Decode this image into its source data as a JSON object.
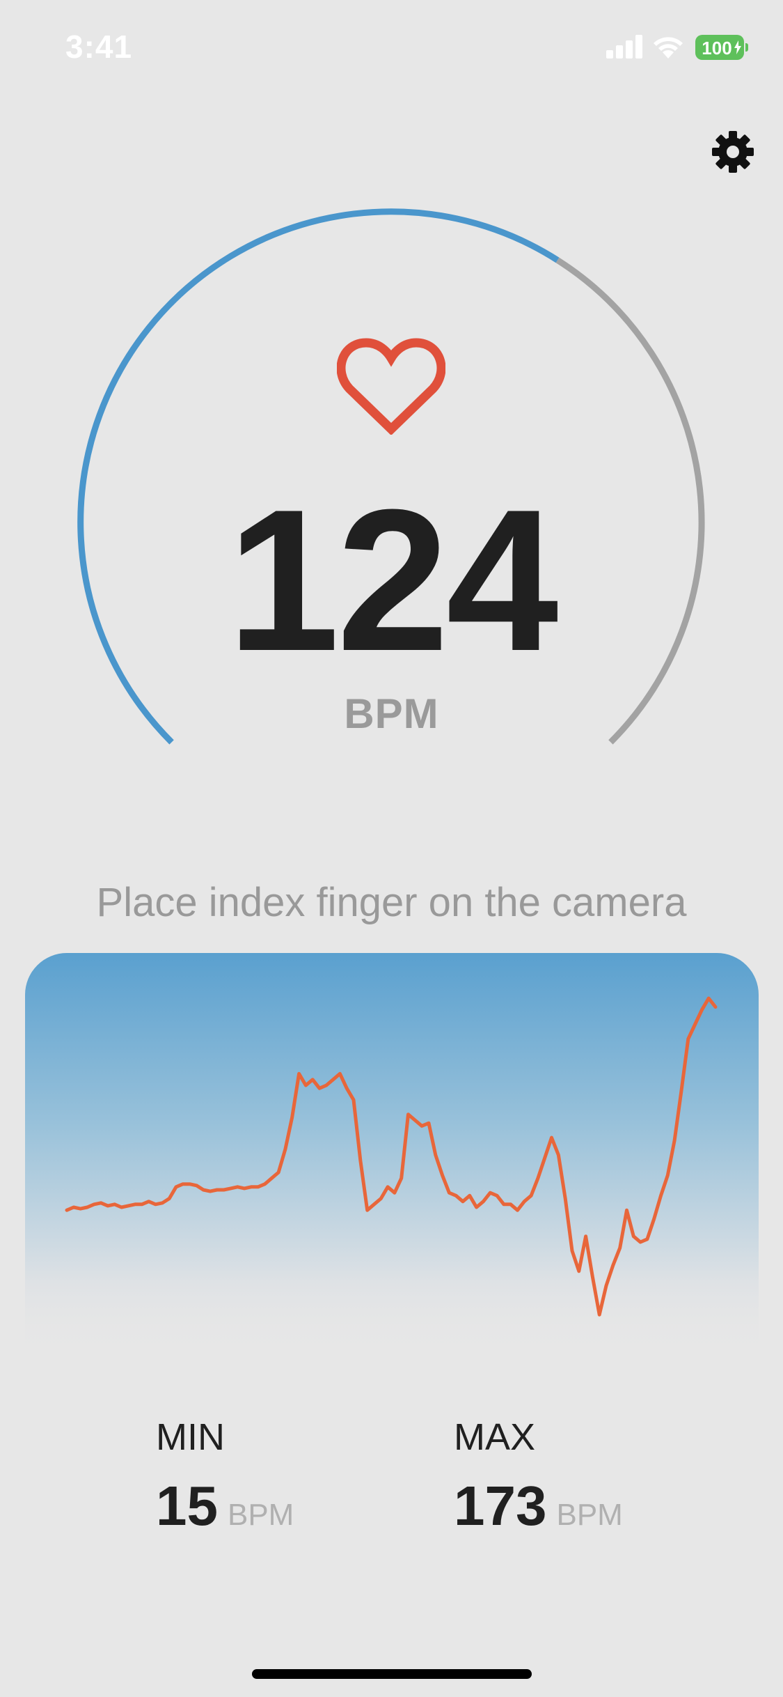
{
  "status_bar": {
    "time": "3:41",
    "battery_level": "100",
    "icons": [
      "signal-icon",
      "wifi-icon",
      "battery-icon"
    ]
  },
  "header": {
    "settings_icon": "gear-icon"
  },
  "gauge": {
    "progress": 0.62,
    "accent_color": "#4a96cc",
    "track_color": "#a3a3a3",
    "heart_icon": "heart-icon",
    "heart_color": "#e0503b"
  },
  "reading": {
    "bpm_value": "124",
    "bpm_unit": "BPM"
  },
  "instruction": "Place index finger on the camera",
  "chart_data": {
    "type": "line",
    "line_color": "#e8663a",
    "series": [
      {
        "values": [
          0.1,
          0.2,
          0.15,
          0.2,
          0.3,
          0.35,
          0.25,
          0.3,
          0.2,
          0.25,
          0.3,
          0.3,
          0.4,
          0.3,
          0.35,
          0.5,
          0.9,
          1.0,
          1.0,
          0.95,
          0.8,
          0.75,
          0.8,
          0.8,
          0.85,
          0.9,
          0.85,
          0.9,
          0.9,
          1.0,
          1.2,
          1.4,
          2.2,
          3.3,
          4.8,
          4.4,
          4.6,
          4.3,
          4.4,
          4.6,
          4.8,
          4.3,
          3.9,
          1.8,
          0.1,
          0.3,
          0.5,
          0.9,
          0.7,
          1.2,
          3.4,
          3.2,
          3.0,
          3.1,
          2.0,
          1.3,
          0.7,
          0.6,
          0.4,
          0.6,
          0.2,
          0.4,
          0.7,
          0.6,
          0.3,
          0.3,
          0.1,
          0.4,
          0.6,
          1.2,
          1.9,
          2.6,
          2.0,
          0.5,
          -1.3,
          -2.0,
          -0.8,
          -2.2,
          -3.5,
          -2.5,
          -1.8,
          -1.2,
          0.1,
          -0.8,
          -1.0,
          -0.9,
          -0.2,
          0.6,
          1.3,
          2.5,
          4.2,
          6.0,
          6.5,
          7.0,
          7.4,
          7.1
        ]
      }
    ],
    "ylim": [
      -4,
      8
    ],
    "grid": false,
    "legend": "none"
  },
  "stats": {
    "min": {
      "label": "MIN",
      "value": "15",
      "unit": "BPM"
    },
    "max": {
      "label": "MAX",
      "value": "173",
      "unit": "BPM"
    }
  }
}
